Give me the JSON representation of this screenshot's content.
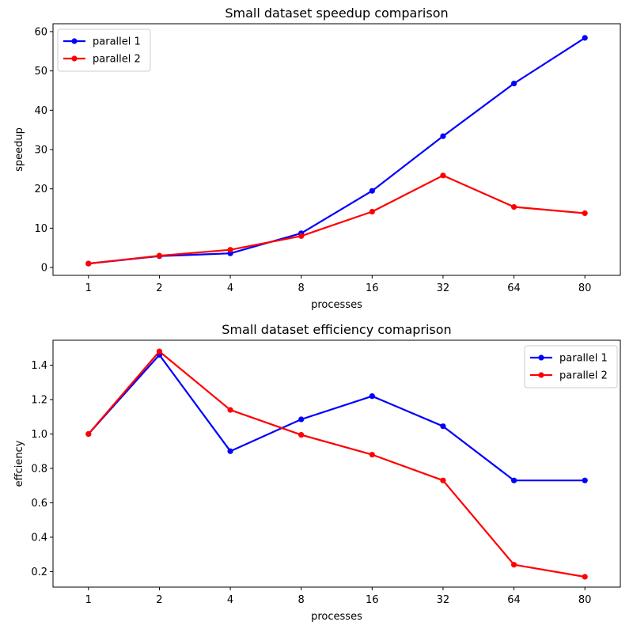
{
  "chart_data": [
    {
      "type": "line",
      "title": "Small dataset speedup comparison",
      "xlabel": "processes",
      "ylabel": "speedup",
      "categories": [
        "1",
        "2",
        "4",
        "8",
        "16",
        "32",
        "64",
        "80"
      ],
      "ylim": [
        -2,
        62
      ],
      "yticks": [
        0,
        10,
        20,
        30,
        40,
        50,
        60
      ],
      "grid": false,
      "legend": "upper left",
      "series": [
        {
          "name": "parallel 1",
          "color": "#0000ff",
          "values": [
            1.0,
            2.9,
            3.6,
            8.7,
            19.5,
            33.4,
            46.8,
            58.4
          ]
        },
        {
          "name": "parallel 2",
          "color": "#ff0000",
          "values": [
            1.0,
            3.0,
            4.5,
            8.0,
            14.2,
            23.4,
            15.4,
            13.8
          ]
        }
      ]
    },
    {
      "type": "line",
      "title": "Small dataset efficiency comaprison",
      "xlabel": "processes",
      "ylabel": "effciency",
      "categories": [
        "1",
        "2",
        "4",
        "8",
        "16",
        "32",
        "64",
        "80"
      ],
      "ylim": [
        0.11,
        1.545
      ],
      "yticks": [
        0.2,
        0.4,
        0.6,
        0.8,
        1.0,
        1.2,
        1.4
      ],
      "grid": false,
      "legend": "upper right",
      "series": [
        {
          "name": "parallel 1",
          "color": "#0000ff",
          "values": [
            1.0,
            1.46,
            0.9,
            1.085,
            1.22,
            1.045,
            0.73,
            0.73
          ]
        },
        {
          "name": "parallel 2",
          "color": "#ff0000",
          "values": [
            1.0,
            1.48,
            1.14,
            0.995,
            0.88,
            0.73,
            0.24,
            0.17
          ]
        }
      ]
    }
  ]
}
